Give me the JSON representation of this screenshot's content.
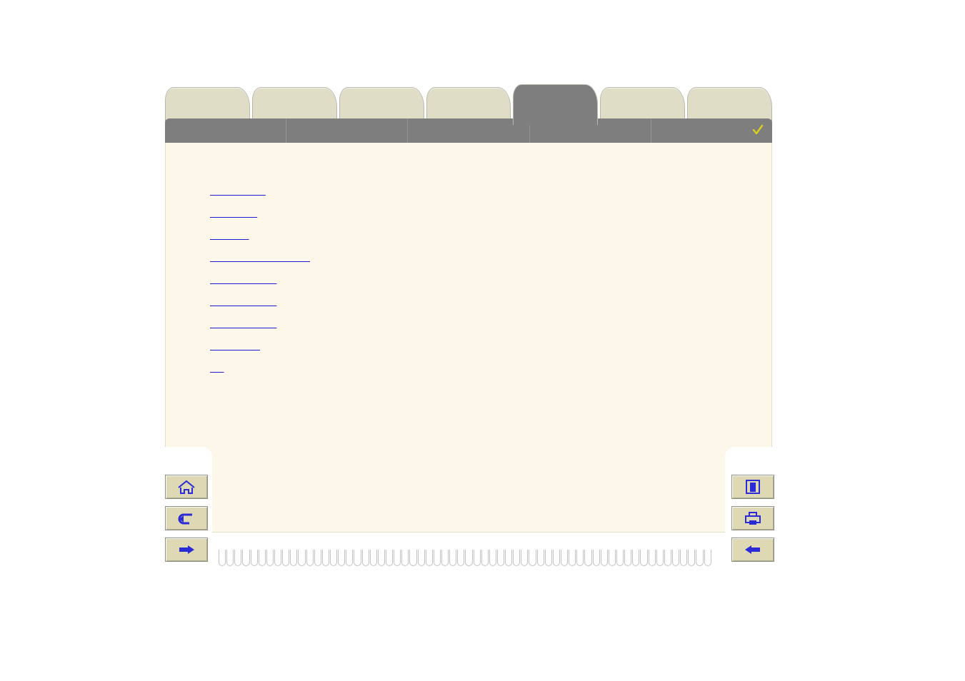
{
  "colors": {
    "tab_bg": "#e0ddc7",
    "tab_active_bg": "#7e7e7e",
    "strip_bg": "#7e7e7e",
    "panel_bg": "#fcf7e8",
    "link": "#1a1ad4",
    "btn_bg": "#ded9b4",
    "btn_border": "#8f8f82",
    "btn_glyph": "#2a2ad6",
    "check": "#d9cf1d",
    "card_border": "#e0dfcc",
    "page_bg": "#ffffff"
  },
  "tabs": [
    {
      "label": "",
      "active": false
    },
    {
      "label": "",
      "active": false
    },
    {
      "label": "",
      "active": false
    },
    {
      "label": "",
      "active": false
    },
    {
      "label": "",
      "active": true
    },
    {
      "label": "",
      "active": false
    },
    {
      "label": "",
      "active": false
    }
  ],
  "strip_cells": 5,
  "strip_checked": true,
  "links": [
    {
      "label": "                    "
    },
    {
      "label": "                 "
    },
    {
      "label": "              "
    },
    {
      "label": "                                    "
    },
    {
      "label": "                        "
    },
    {
      "label": "                        "
    },
    {
      "label": "                        "
    },
    {
      "label": "                  "
    },
    {
      "label": "     "
    }
  ],
  "buttons_left": [
    {
      "name": "home-button",
      "icon": "house-icon",
      "tooltip": ""
    },
    {
      "name": "undo-button",
      "icon": "undo-icon",
      "tooltip": ""
    },
    {
      "name": "next-button",
      "icon": "finger-right-icon",
      "tooltip": ""
    }
  ],
  "buttons_right": [
    {
      "name": "exit-button",
      "icon": "door-icon",
      "tooltip": ""
    },
    {
      "name": "print-button",
      "icon": "printer-icon",
      "tooltip": ""
    },
    {
      "name": "prev-button",
      "icon": "finger-left-icon",
      "tooltip": ""
    }
  ],
  "coil_rings": 62
}
